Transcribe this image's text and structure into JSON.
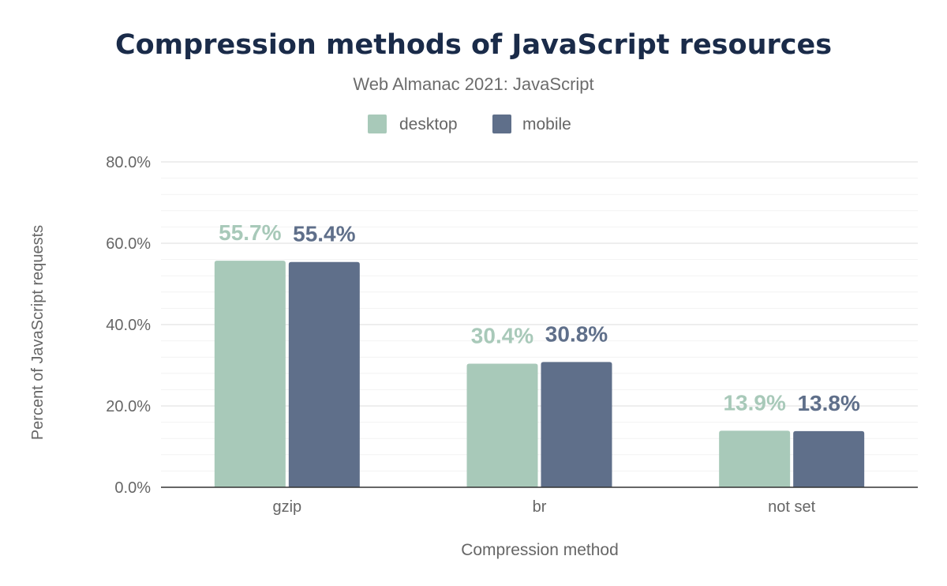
{
  "chart_data": {
    "type": "bar",
    "title": "Compression methods of JavaScript resources",
    "subtitle": "Web Almanac 2021: JavaScript",
    "xlabel": "Compression method",
    "ylabel": "Percent of JavaScript requests",
    "categories": [
      "gzip",
      "br",
      "not set"
    ],
    "series": [
      {
        "name": "desktop",
        "values": [
          55.7,
          30.4,
          13.9
        ],
        "labels": [
          "55.7%",
          "30.4%",
          "13.9%"
        ],
        "color": "#a8c9b9"
      },
      {
        "name": "mobile",
        "values": [
          55.4,
          30.8,
          13.8
        ],
        "labels": [
          "55.4%",
          "30.8%",
          "13.8%"
        ],
        "color": "#5f6f8a"
      }
    ],
    "ylim": [
      0,
      80
    ],
    "yticks": [
      0,
      20,
      40,
      60,
      80
    ],
    "ytick_labels": [
      "0.0%",
      "20.0%",
      "40.0%",
      "60.0%",
      "80.0%"
    ],
    "grid": true,
    "legend_position": "top-center",
    "title_color": "#1a2b49"
  }
}
